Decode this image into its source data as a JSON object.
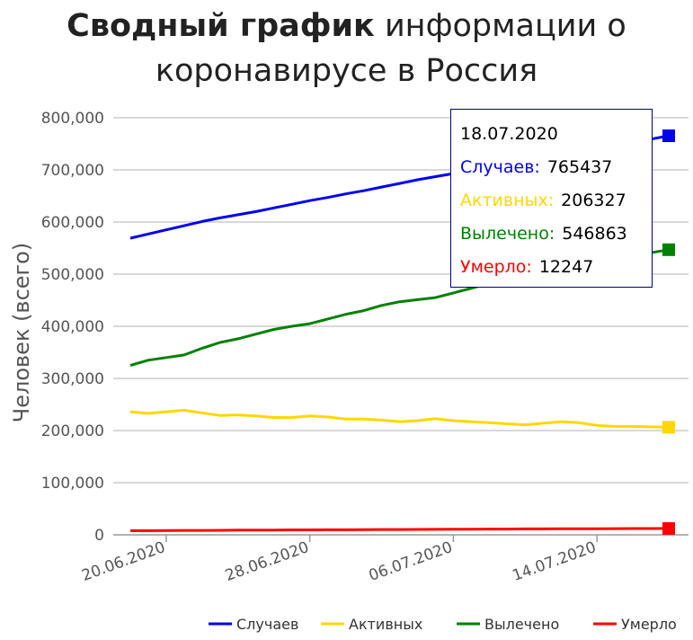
{
  "title": {
    "bold": "Сводный график",
    "rest_line1": "информации о",
    "line2": "коронавирусе в Россия"
  },
  "chart_data": {
    "type": "line",
    "ylabel": "Человек (всего)",
    "xlabel": "",
    "ylim": [
      0,
      800000
    ],
    "yticks": [
      "0",
      "100,000",
      "200,000",
      "300,000",
      "400,000",
      "500,000",
      "600,000",
      "700,000",
      "800,000"
    ],
    "yticks_values": [
      0,
      100000,
      200000,
      300000,
      400000,
      500000,
      600000,
      700000,
      800000
    ],
    "x_start": "18.06.2020",
    "x": [
      "18.06.2020",
      "19.06.2020",
      "20.06.2020",
      "21.06.2020",
      "22.06.2020",
      "23.06.2020",
      "24.06.2020",
      "25.06.2020",
      "26.06.2020",
      "27.06.2020",
      "28.06.2020",
      "29.06.2020",
      "30.06.2020",
      "01.07.2020",
      "02.07.2020",
      "03.07.2020",
      "04.07.2020",
      "05.07.2020",
      "06.07.2020",
      "07.07.2020",
      "08.07.2020",
      "09.07.2020",
      "10.07.2020",
      "11.07.2020",
      "12.07.2020",
      "13.07.2020",
      "14.07.2020",
      "15.07.2020",
      "16.07.2020",
      "17.07.2020",
      "18.07.2020"
    ],
    "xticks": [
      "20.06.2020",
      "28.06.2020",
      "06.07.2020",
      "14.07.2020"
    ],
    "xticks_index": [
      2,
      10,
      18,
      26
    ],
    "grid": true,
    "legend_position": "bottom",
    "series": [
      {
        "name": "Случаев",
        "color": "#0000ee",
        "values": [
          569000,
          577000,
          585000,
          593000,
          601000,
          608000,
          614000,
          620000,
          627000,
          634000,
          641000,
          647000,
          654000,
          660000,
          667000,
          674000,
          681000,
          687000,
          693000,
          700000,
          707000,
          714000,
          720000,
          727000,
          733000,
          739000,
          746000,
          752000,
          752000,
          759000,
          765437
        ]
      },
      {
        "name": "Активных",
        "color": "#ffd700",
        "values": [
          236000,
          233000,
          236000,
          239000,
          234000,
          229000,
          230000,
          228000,
          225000,
          225000,
          228000,
          226000,
          222000,
          222000,
          220000,
          217000,
          219000,
          223000,
          219000,
          217000,
          215000,
          213000,
          211000,
          214000,
          217000,
          215000,
          210000,
          208000,
          208000,
          207000,
          206327
        ]
      },
      {
        "name": "Вылечено",
        "color": "#008000",
        "values": [
          325000,
          335000,
          340000,
          345000,
          358000,
          369000,
          376000,
          385000,
          394000,
          400000,
          405000,
          414000,
          423000,
          430000,
          440000,
          447000,
          451000,
          455000,
          464000,
          473000,
          482000,
          491000,
          500000,
          507000,
          513000,
          521000,
          528000,
          533000,
          533000,
          541000,
          546863
        ]
      },
      {
        "name": "Умерло",
        "color": "#ff0000",
        "values": [
          7900,
          8000,
          8200,
          8400,
          8500,
          8700,
          8900,
          9000,
          9200,
          9400,
          9500,
          9600,
          9700,
          9900,
          10100,
          10200,
          10400,
          10500,
          10700,
          10800,
          11000,
          11100,
          11300,
          11400,
          11600,
          11700,
          11800,
          11900,
          12000,
          12100,
          12247
        ]
      }
    ]
  },
  "tooltip": {
    "date": "18.07.2020",
    "rows": [
      {
        "label": "Случаев:",
        "value": "765437",
        "color": "#0000ee"
      },
      {
        "label": "Активных:",
        "value": "206327",
        "color": "#ffd700"
      },
      {
        "label": "Вылечено:",
        "value": "546863",
        "color": "#008000"
      },
      {
        "label": "Умерло:",
        "value": "12247",
        "color": "#ff0000"
      }
    ]
  }
}
